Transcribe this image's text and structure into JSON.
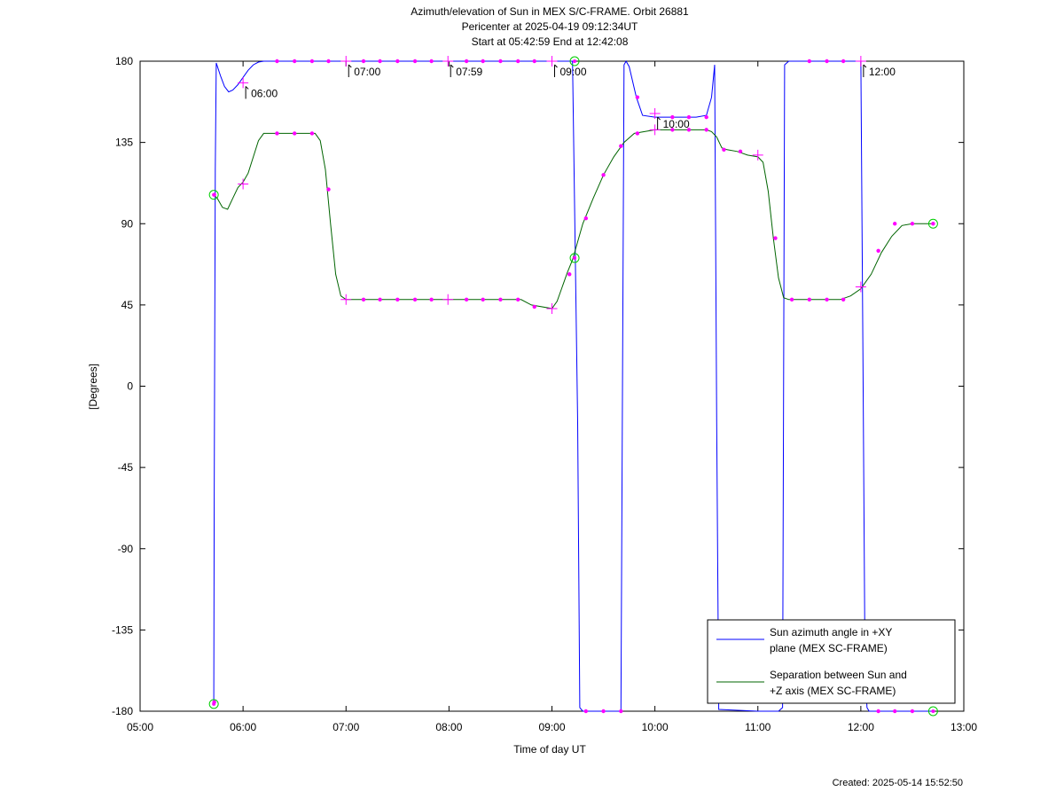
{
  "chart_data": {
    "type": "line",
    "title": [
      "Azimuth/elevation of Sun in MEX S/C-FRAME.  Orbit 26881",
      "Pericenter at 2025-04-19 09:12:34UT",
      "Start at 05:42:59 End at 12:42:08"
    ],
    "xlabel": "Time of day UT",
    "ylabel": "[Degrees]",
    "xlim": [
      5.0,
      13.0
    ],
    "ylim": [
      -180,
      180
    ],
    "x_ticks": [
      5,
      6,
      7,
      8,
      9,
      10,
      11,
      12,
      13
    ],
    "x_tick_labels": [
      "05:00",
      "06:00",
      "07:00",
      "08:00",
      "09:00",
      "10:00",
      "11:00",
      "12:00",
      "13:00"
    ],
    "y_ticks": [
      180,
      135,
      90,
      45,
      0,
      -45,
      -90,
      -135,
      -180
    ],
    "y_tick_labels": [
      "180",
      "135",
      "90",
      "45",
      "0",
      "-45",
      "-90",
      "-135",
      "-180"
    ],
    "grid": false,
    "legend_position": "bottom-right",
    "series": [
      {
        "name": "Sun azimuth angle in +XY plane (MEX SC-FRAME)",
        "legend_lines": [
          "Sun azimuth angle in +XY",
          "plane (MEX SC-FRAME)"
        ],
        "color": "#0000ff",
        "x": [
          5.716,
          5.72,
          5.73,
          5.74,
          5.78,
          5.82,
          5.86,
          5.9,
          5.95,
          6.0,
          6.05,
          6.1,
          6.15,
          6.2,
          6.3,
          6.5,
          6.7,
          7.0,
          7.5,
          8.0,
          8.5,
          9.0,
          9.2,
          9.25,
          9.27,
          9.3,
          9.5,
          9.67,
          9.7,
          9.72,
          9.75,
          9.82,
          9.88,
          10.0,
          10.2,
          10.4,
          10.5,
          10.55,
          10.58,
          10.6,
          10.62,
          11.0,
          11.2,
          11.24,
          11.26,
          11.3,
          11.5,
          11.7,
          12.0,
          12.02,
          12.04,
          12.06,
          12.08,
          12.1,
          12.3,
          12.5,
          12.702
        ],
        "y": [
          -176,
          -60,
          120,
          179,
          172,
          166,
          163,
          164,
          167,
          171,
          175,
          178,
          179.5,
          180,
          180,
          180,
          180,
          180,
          180,
          180,
          180,
          180,
          180,
          -20,
          -178,
          -180,
          -180,
          -180,
          178,
          180,
          177,
          160,
          150,
          149,
          149,
          149,
          150,
          160,
          178,
          -20,
          -179,
          -180,
          -180,
          -178,
          178,
          180,
          180,
          180,
          180,
          20,
          -150,
          -178,
          -180,
          -180,
          -180,
          -180,
          -180
        ]
      },
      {
        "name": "Separation between Sun and +Z axis (MEX SC-FRAME)",
        "legend_lines": [
          "Separation between Sun and",
          "+Z axis (MEX SC-FRAME)"
        ],
        "color": "#006400",
        "x": [
          5.716,
          5.75,
          5.8,
          5.85,
          5.9,
          5.95,
          6.0,
          6.05,
          6.1,
          6.15,
          6.2,
          6.3,
          6.5,
          6.7,
          6.75,
          6.8,
          6.85,
          6.9,
          6.95,
          7.0,
          7.5,
          8.0,
          8.5,
          8.7,
          8.8,
          9.0,
          9.05,
          9.1,
          9.15,
          9.2,
          9.25,
          9.3,
          9.4,
          9.5,
          9.6,
          9.7,
          9.8,
          10.0,
          10.5,
          10.55,
          10.6,
          10.65,
          10.7,
          10.8,
          10.9,
          11.0,
          11.05,
          11.1,
          11.15,
          11.2,
          11.25,
          11.3,
          11.4,
          11.6,
          11.8,
          11.9,
          12.0,
          12.1,
          12.2,
          12.3,
          12.4,
          12.5,
          12.702
        ],
        "y": [
          106,
          104,
          99,
          98,
          104,
          110,
          113,
          118,
          127,
          136,
          140,
          140,
          140,
          140,
          136,
          120,
          90,
          62,
          50,
          48,
          48,
          48,
          48,
          48,
          45,
          43,
          47,
          55,
          63,
          70,
          80,
          90,
          104,
          117,
          127,
          135,
          140,
          142,
          142,
          141,
          138,
          132,
          131,
          130,
          128,
          127,
          124,
          108,
          82,
          60,
          49,
          48,
          48,
          48,
          48,
          50,
          54,
          62,
          74,
          83,
          89,
          90,
          90
        ]
      }
    ],
    "markers": {
      "azimuth": {
        "dots_x": [
          5.72,
          6.33,
          6.5,
          6.67,
          6.83,
          7.17,
          7.33,
          7.5,
          7.67,
          7.83,
          8.17,
          8.33,
          8.5,
          8.67,
          8.83,
          9.33,
          9.5,
          9.67,
          9.83,
          10.17,
          10.33,
          10.5,
          11.5,
          11.67,
          11.83,
          12.17,
          12.33,
          12.5
        ],
        "dots_y": [
          -175,
          180,
          180,
          180,
          180,
          180,
          180,
          180,
          180,
          180,
          180,
          180,
          180,
          180,
          180,
          -180,
          -180,
          -180,
          160,
          149,
          149,
          149,
          180,
          180,
          180,
          -180,
          -180,
          -180
        ],
        "crosses_x": [
          6.0,
          7.0,
          7.99,
          9.0,
          10.0,
          12.0
        ],
        "crosses_y": [
          168,
          180,
          180,
          180,
          151,
          180
        ],
        "circles_x": [
          5.716,
          9.22,
          12.702
        ],
        "circles_y": [
          -176,
          180,
          -180
        ]
      },
      "separation": {
        "dots_x": [
          5.72,
          6.33,
          6.5,
          6.67,
          6.83,
          7.17,
          7.33,
          7.5,
          7.67,
          7.83,
          8.17,
          8.33,
          8.5,
          8.67,
          8.83,
          9.17,
          9.33,
          9.5,
          9.67,
          9.83,
          10.17,
          10.33,
          10.5,
          10.67,
          10.83,
          11.17,
          11.33,
          11.5,
          11.67,
          11.83,
          12.17,
          12.33,
          12.5,
          12.702
        ],
        "dots_y": [
          106,
          140,
          140,
          140,
          109,
          48,
          48,
          48,
          48,
          48,
          48,
          48,
          48,
          48,
          44,
          62,
          93,
          117,
          133,
          140,
          142,
          142,
          142,
          131,
          130,
          82,
          48,
          48,
          48,
          48,
          75,
          90,
          90,
          90
        ],
        "crosses_x": [
          6.0,
          7.0,
          7.99,
          9.0,
          10.0,
          11.0,
          12.0
        ],
        "crosses_y": [
          112,
          48,
          48,
          43,
          142,
          128,
          55
        ],
        "circles_x": [
          5.716,
          9.22,
          12.702
        ],
        "circles_y": [
          106,
          71,
          90
        ]
      },
      "dot_color": "#ff00ff",
      "circle_color": "#00cc00"
    },
    "annotations": [
      {
        "text": "06:00",
        "x": 6.0,
        "y": 168
      },
      {
        "text": "07:00",
        "x": 7.0,
        "y": 180
      },
      {
        "text": "07:59",
        "x": 7.99,
        "y": 180
      },
      {
        "text": "09:00",
        "x": 9.0,
        "y": 180
      },
      {
        "text": "10:00",
        "x": 10.0,
        "y": 151
      },
      {
        "text": "12:00",
        "x": 12.0,
        "y": 180
      }
    ]
  },
  "footer": {
    "created": "Created: 2025-05-14 15:52:50"
  }
}
